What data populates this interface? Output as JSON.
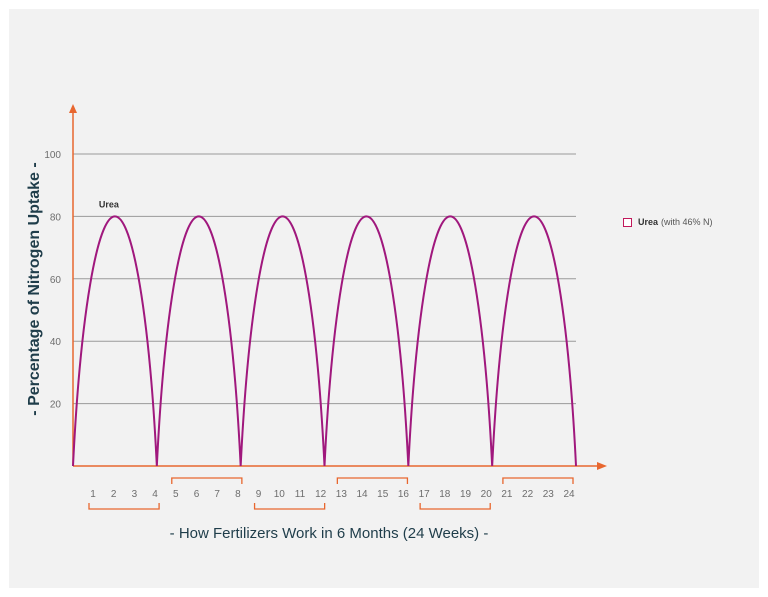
{
  "chart_data": {
    "type": "line",
    "xlabel": "- How Fertilizers Work in 6 Months (24 Weeks) -",
    "ylabel": "- Percentage of Nitrogen Uptake -",
    "ylim": [
      0,
      100
    ],
    "yticks": [
      "20",
      "40",
      "60",
      "80",
      "100"
    ],
    "xlim": [
      0,
      24
    ],
    "xticks": [
      "1",
      "2",
      "3",
      "4",
      "5",
      "6",
      "7",
      "8",
      "9",
      "10",
      "11",
      "12",
      "13",
      "14",
      "15",
      "16",
      "17",
      "18",
      "19",
      "20",
      "21",
      "22",
      "23",
      "24"
    ],
    "x_groups": [
      [
        1,
        4
      ],
      [
        5,
        8
      ],
      [
        9,
        12
      ],
      [
        13,
        16
      ],
      [
        17,
        20
      ],
      [
        21,
        24
      ]
    ],
    "grid": true,
    "legend_position": "right",
    "series": [
      {
        "name": "Urea",
        "legend_label": "Urea",
        "legend_note": "(with 46% N)",
        "color": "#a0187d",
        "x": [
          0,
          2,
          4,
          6,
          8,
          10,
          12,
          14,
          16,
          18,
          20,
          22,
          24
        ],
        "values": [
          0,
          80,
          0,
          80,
          0,
          80,
          0,
          80,
          0,
          80,
          0,
          80,
          0
        ]
      }
    ],
    "annotations": [
      {
        "text": "Urea",
        "x": 2,
        "y": 80
      }
    ]
  },
  "colors": {
    "axis": "#e8672f",
    "grid": "#9a9a9a",
    "series": "#a0187d",
    "label": "#1f3d4a"
  }
}
